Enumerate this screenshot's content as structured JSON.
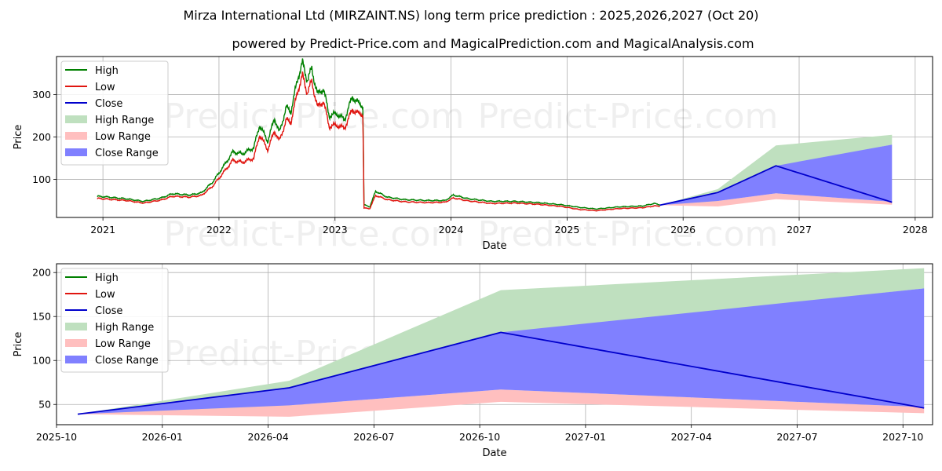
{
  "chart_data": {
    "title": "Mirza International Ltd (MIRZAINT.NS) long term price prediction : 2025,2026,2027 (Oct 20)",
    "subtitle": "powered by Predict-Price.com and MagicalPrediction.com and MagicalAnalysis.com",
    "watermark": "Predict-Price.com",
    "colors": {
      "high": "#008000",
      "low": "#e0150f",
      "close": "#0000cc",
      "high_range": "#bfe0bf",
      "low_range": "#ffbfbf",
      "close_range": "#8080ff",
      "grid": "#b0b0b0"
    },
    "legend": [
      "High",
      "Low",
      "Close",
      "High Range",
      "Low Range",
      "Close Range"
    ],
    "panels": [
      {
        "type": "line",
        "xlabel": "Date",
        "ylabel": "Price",
        "xlim": [
          2020.6,
          2028.15
        ],
        "ylim": [
          10,
          390
        ],
        "xticks": [
          2021,
          2022,
          2023,
          2024,
          2025,
          2026,
          2027,
          2028
        ],
        "xtick_labels": [
          "2021",
          "2022",
          "2023",
          "2024",
          "2025",
          "2026",
          "2027",
          "2028"
        ],
        "yticks": [
          100,
          200,
          300
        ],
        "history": [
          {
            "x": 2020.95,
            "high": 60,
            "low": 55
          },
          {
            "x": 2021.05,
            "high": 58,
            "low": 53
          },
          {
            "x": 2021.2,
            "high": 54,
            "low": 50
          },
          {
            "x": 2021.35,
            "high": 48,
            "low": 44
          },
          {
            "x": 2021.5,
            "high": 56,
            "low": 51
          },
          {
            "x": 2021.6,
            "high": 66,
            "low": 60
          },
          {
            "x": 2021.75,
            "high": 63,
            "low": 58
          },
          {
            "x": 2021.85,
            "high": 68,
            "low": 62
          },
          {
            "x": 2021.95,
            "high": 95,
            "low": 85
          },
          {
            "x": 2022.05,
            "high": 135,
            "low": 120
          },
          {
            "x": 2022.12,
            "high": 165,
            "low": 145
          },
          {
            "x": 2022.2,
            "high": 160,
            "low": 140
          },
          {
            "x": 2022.3,
            "high": 175,
            "low": 150
          },
          {
            "x": 2022.35,
            "high": 228,
            "low": 205
          },
          {
            "x": 2022.42,
            "high": 190,
            "low": 170
          },
          {
            "x": 2022.48,
            "high": 245,
            "low": 215
          },
          {
            "x": 2022.52,
            "high": 210,
            "low": 190
          },
          {
            "x": 2022.58,
            "high": 270,
            "low": 240
          },
          {
            "x": 2022.62,
            "high": 260,
            "low": 235
          },
          {
            "x": 2022.68,
            "high": 340,
            "low": 310
          },
          {
            "x": 2022.72,
            "high": 375,
            "low": 345
          },
          {
            "x": 2022.76,
            "high": 335,
            "low": 305
          },
          {
            "x": 2022.8,
            "high": 360,
            "low": 330
          },
          {
            "x": 2022.85,
            "high": 300,
            "low": 270
          },
          {
            "x": 2022.9,
            "high": 315,
            "low": 285
          },
          {
            "x": 2022.95,
            "high": 250,
            "low": 225
          },
          {
            "x": 2023.02,
            "high": 255,
            "low": 228
          },
          {
            "x": 2023.08,
            "high": 240,
            "low": 220
          },
          {
            "x": 2023.15,
            "high": 295,
            "low": 265
          },
          {
            "x": 2023.2,
            "high": 280,
            "low": 255
          },
          {
            "x": 2023.24,
            "high": 275,
            "low": 255
          },
          {
            "x": 2023.25,
            "high": 40,
            "low": 32
          },
          {
            "x": 2023.3,
            "high": 35,
            "low": 31
          },
          {
            "x": 2023.35,
            "high": 72,
            "low": 62
          },
          {
            "x": 2023.45,
            "high": 58,
            "low": 52
          },
          {
            "x": 2023.6,
            "high": 52,
            "low": 47
          },
          {
            "x": 2023.8,
            "high": 50,
            "low": 45
          },
          {
            "x": 2023.95,
            "high": 50,
            "low": 46
          },
          {
            "x": 2024.02,
            "high": 63,
            "low": 56
          },
          {
            "x": 2024.15,
            "high": 54,
            "low": 49
          },
          {
            "x": 2024.35,
            "high": 48,
            "low": 43
          },
          {
            "x": 2024.55,
            "high": 48,
            "low": 44
          },
          {
            "x": 2024.75,
            "high": 45,
            "low": 41
          },
          {
            "x": 2024.95,
            "high": 40,
            "low": 36
          },
          {
            "x": 2025.1,
            "high": 34,
            "low": 29
          },
          {
            "x": 2025.25,
            "high": 30,
            "low": 26
          },
          {
            "x": 2025.45,
            "high": 35,
            "low": 31
          },
          {
            "x": 2025.65,
            "high": 37,
            "low": 33
          },
          {
            "x": 2025.75,
            "high": 43,
            "low": 37
          },
          {
            "x": 2025.8,
            "high": 40,
            "low": 37
          }
        ],
        "forecast": [
          {
            "x": 2025.8,
            "high_lo": 39,
            "high_hi": 39,
            "low_lo": 39,
            "low_hi": 39,
            "close_lo": 39,
            "close_hi": 39,
            "close": 39
          },
          {
            "x": 2026.3,
            "high_lo": 48,
            "high_hi": 77,
            "low_lo": 36,
            "low_hi": 49,
            "close_lo": 49,
            "close_hi": 69,
            "close": 69
          },
          {
            "x": 2026.8,
            "high_lo": 130,
            "high_hi": 180,
            "low_lo": 53,
            "low_hi": 67,
            "close_lo": 67,
            "close_hi": 132,
            "close": 132
          },
          {
            "x": 2027.8,
            "high_lo": 182,
            "high_hi": 205,
            "low_lo": 40,
            "low_hi": 47,
            "close_lo": 47,
            "close_hi": 182,
            "close": 46
          }
        ]
      },
      {
        "type": "line",
        "xlabel": "Date",
        "ylabel": "Price",
        "xlim": [
          2025.75,
          2027.82
        ],
        "ylim": [
          27,
          210
        ],
        "xticks": [
          2025.75,
          2026.0,
          2026.25,
          2026.5,
          2026.75,
          2027.0,
          2027.25,
          2027.5,
          2027.75
        ],
        "xtick_labels": [
          "2025-10",
          "2026-01",
          "2026-04",
          "2026-07",
          "2026-10",
          "2027-01",
          "2027-04",
          "2027-07",
          "2027-10"
        ],
        "yticks": [
          50,
          100,
          150,
          200
        ],
        "forecast": [
          {
            "x": 2025.8,
            "high_lo": 39,
            "high_hi": 39,
            "low_lo": 39,
            "low_hi": 39,
            "close_lo": 39,
            "close_hi": 39,
            "close": 39
          },
          {
            "x": 2026.3,
            "high_lo": 48,
            "high_hi": 77,
            "low_lo": 36,
            "low_hi": 49,
            "close_lo": 49,
            "close_hi": 69,
            "close": 69
          },
          {
            "x": 2026.8,
            "high_lo": 130,
            "high_hi": 180,
            "low_lo": 53,
            "low_hi": 67,
            "close_lo": 67,
            "close_hi": 132,
            "close": 132
          },
          {
            "x": 2027.8,
            "high_lo": 182,
            "high_hi": 205,
            "low_lo": 40,
            "low_hi": 47,
            "close_lo": 47,
            "close_hi": 182,
            "close": 46
          }
        ]
      }
    ]
  }
}
